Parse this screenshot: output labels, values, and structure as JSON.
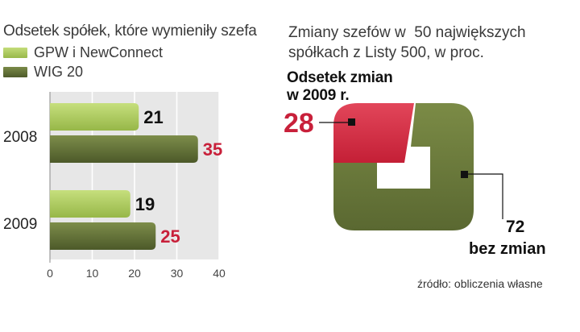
{
  "left_chart": {
    "title": "Odsetek spółek, które wymieniły szefa",
    "legend": [
      {
        "label": "GPW i NewConnect",
        "color": "#a9c75a"
      },
      {
        "label": "WIG 20",
        "color": "#5d6b34"
      }
    ]
  },
  "right_chart": {
    "title_line1": "Zmiany szefów w  50 największych",
    "title_line2": "spółkach z Listy 500, w proc.",
    "caption_line1": "Odsetek zmian",
    "caption_line2": "w 2009 r.",
    "value_changed": "28",
    "value_unchanged": "72",
    "label_unchanged": "bez zmian"
  },
  "source": "źródło: obliczenia własne",
  "chart_data": [
    {
      "type": "bar",
      "orientation": "horizontal",
      "title": "Odsetek spółek, które wymieniły szefa",
      "categories": [
        "2008",
        "2009"
      ],
      "series": [
        {
          "name": "GPW i NewConnect",
          "values": [
            21,
            19
          ],
          "color": "#a9c75a"
        },
        {
          "name": "WIG 20",
          "values": [
            35,
            25
          ],
          "color": "#5d6b34"
        }
      ],
      "xlim": [
        0,
        40
      ],
      "xticks": [
        0,
        10,
        20,
        30,
        40
      ],
      "grid": true,
      "legend": "top-left"
    },
    {
      "type": "pie",
      "title": "Zmiany szefów w  50 największych spółkach z Listy 500, w proc.",
      "slices": [
        {
          "label": "Odsetek zmian w 2009 r.",
          "value": 28,
          "color": "#d8364a"
        },
        {
          "label": "bez zmian",
          "value": 72,
          "color": "#6b7a3c"
        }
      ]
    }
  ]
}
